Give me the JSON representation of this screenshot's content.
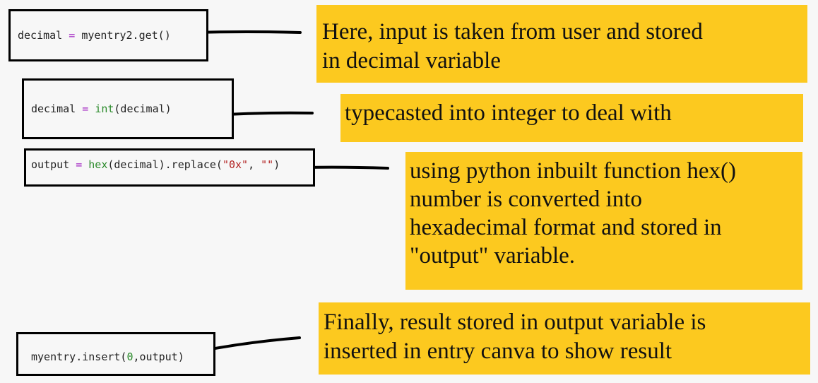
{
  "code_lines": {
    "line1": {
      "var": "decimal",
      "op": "=",
      "rest": "myentry2.get()"
    },
    "line2": {
      "var": "decimal",
      "op": "=",
      "func": "int",
      "rest": "(decimal)"
    },
    "line3": {
      "var": "output",
      "op": "=",
      "func": "hex",
      "mid": "(decimal).replace(",
      "s1": "\"0x\"",
      "sep": ", ",
      "s2": "\"\"",
      "end": ")"
    },
    "line4": {
      "pre": "myentry.insert(",
      "num": "0",
      "rest": ",output)"
    }
  },
  "notes": {
    "note1": [
      "Here, input is taken from user and stored",
      "in decimal variable"
    ],
    "note2": [
      "typecasted into integer to deal with"
    ],
    "note3": [
      "using python inbuilt function hex()",
      "number is converted into",
      "hexadecimal format and stored in",
      "\"output\" variable."
    ],
    "note4": [
      "Finally, result stored in output variable is",
      "inserted in entry canva to show result"
    ]
  },
  "colors": {
    "note_background": "#fcc91f",
    "border": "#000000",
    "operator": "#a020c0",
    "builtin": "#2a8a2a",
    "string": "#b22222"
  }
}
